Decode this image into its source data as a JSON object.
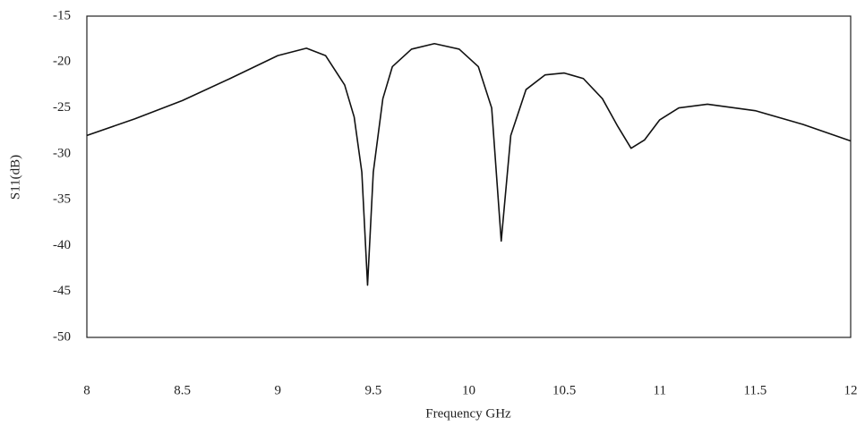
{
  "chart_data": {
    "type": "line",
    "x_label": "Frequency GHz",
    "y_label": "S11(dB)",
    "x": [
      8,
      8.25,
      8.5,
      8.75,
      9,
      9.15,
      9.25,
      9.35,
      9.4,
      9.44,
      9.47,
      9.5,
      9.55,
      9.6,
      9.7,
      9.82,
      9.95,
      10.05,
      10.12,
      10.17,
      10.22,
      10.3,
      10.4,
      10.5,
      10.6,
      10.7,
      10.78,
      10.85,
      10.92,
      11.0,
      11.1,
      11.25,
      11.5,
      11.75,
      12
    ],
    "values": [
      -28,
      -26.2,
      -24.2,
      -21.8,
      -19.3,
      -18.5,
      -19.3,
      -22.5,
      -26,
      -32,
      -44.3,
      -32,
      -24,
      -20.5,
      -18.6,
      -18,
      -18.6,
      -20.5,
      -25,
      -39.5,
      -28,
      -23,
      -21.4,
      -21.2,
      -21.8,
      -24,
      -27,
      -29.4,
      -28.5,
      -26.3,
      -25,
      -24.6,
      -25.3,
      -26.8,
      -28.6
    ],
    "color": "#111111",
    "xlim": [
      8,
      12
    ],
    "xticks": [
      8,
      8.5,
      9,
      9.5,
      10,
      10.5,
      11,
      11.5,
      12
    ],
    "ylim": [
      -50,
      -15
    ],
    "yticks": [
      -15,
      -20,
      -25,
      -30,
      -35,
      -40,
      -45,
      -50
    ],
    "grid": false
  }
}
